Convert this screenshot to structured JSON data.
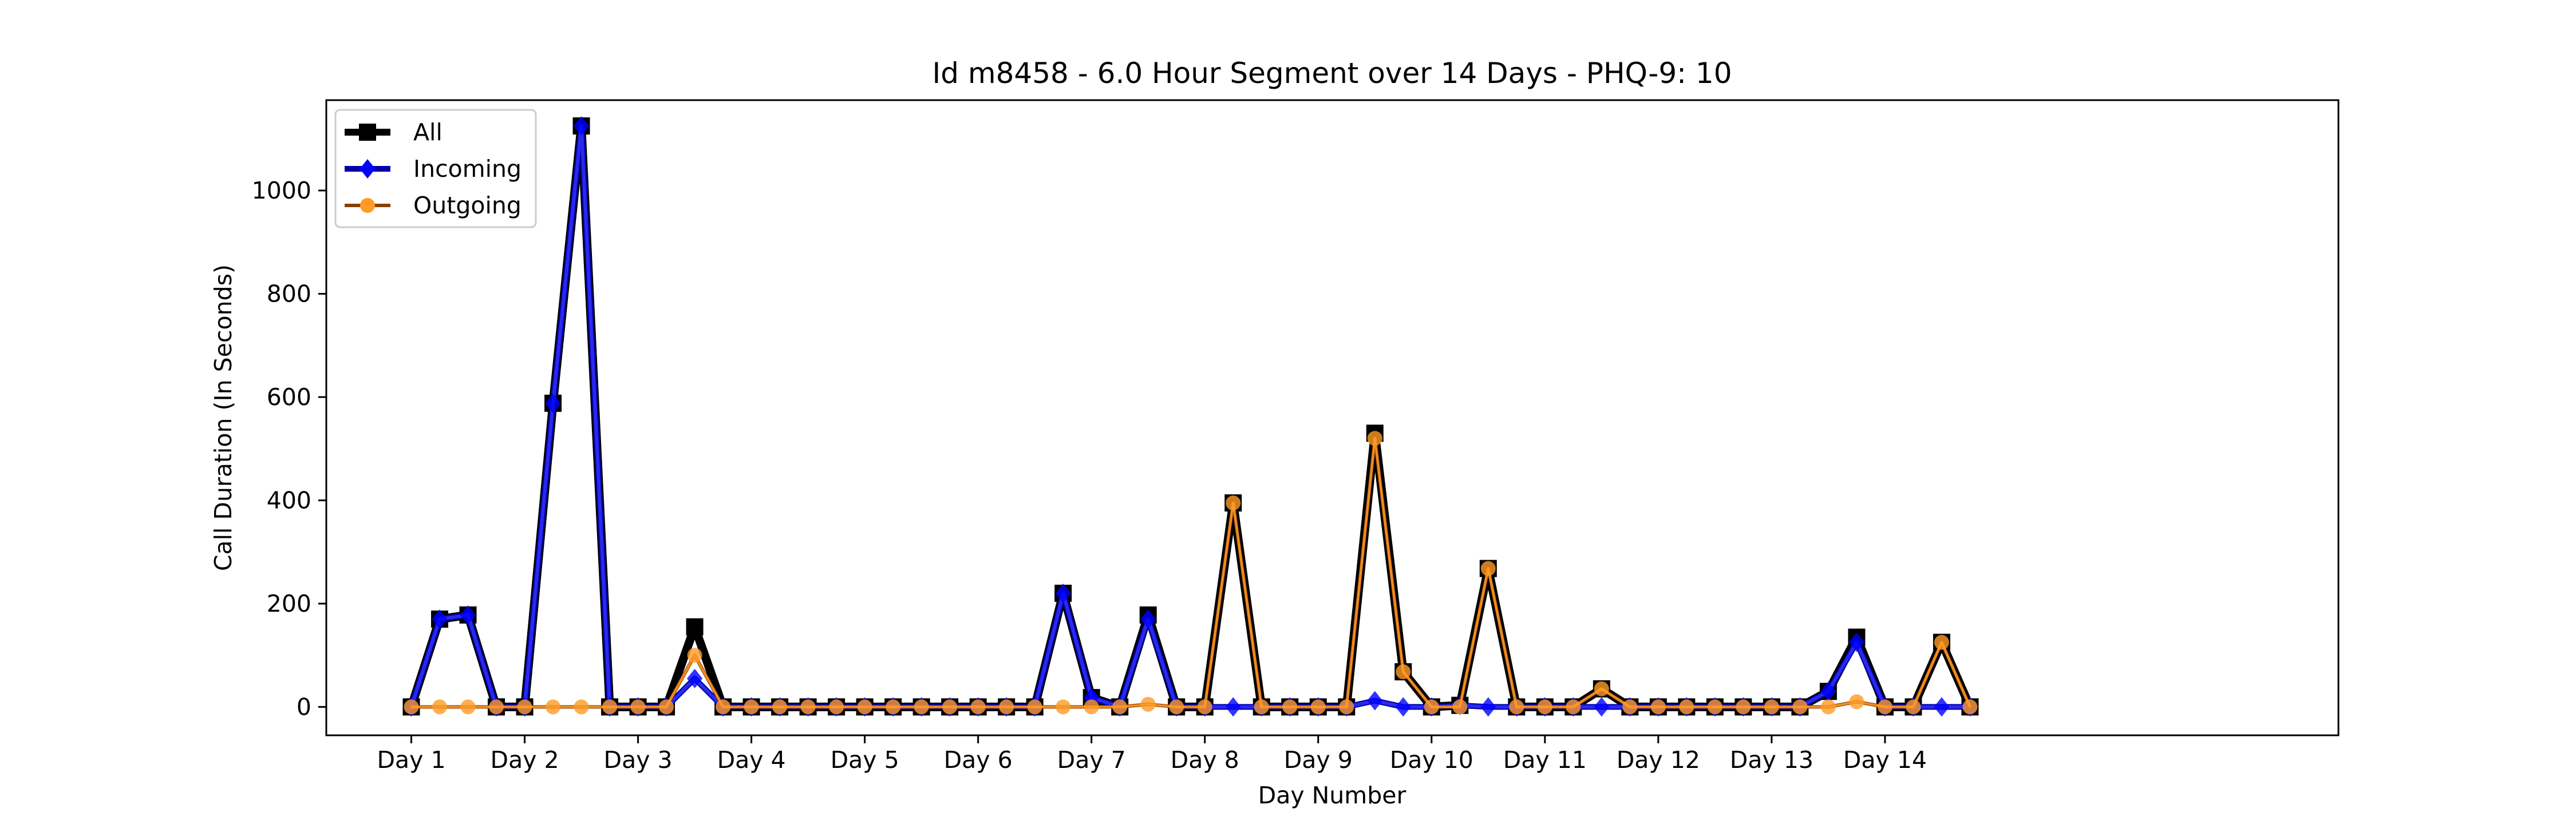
{
  "chart_data": {
    "type": "line",
    "title": "Id m8458 - 6.0 Hour Segment over 14 Days - PHQ-9: 10",
    "xlabel": "Day Number",
    "ylabel": "Call Duration (In Seconds)",
    "xlim": [
      -0.3,
      6.8
    ],
    "ylim": [
      -55,
      1175
    ],
    "yticks": [
      0,
      200,
      400,
      600,
      800,
      1000
    ],
    "xtick_labels": [
      "Day 1",
      "Day 2",
      "Day 3",
      "Day 4",
      "Day 5",
      "Day 6",
      "Day 7",
      "Day 8",
      "Day 9",
      "Day 10",
      "Day 11",
      "Day 12",
      "Day 13",
      "Day 14"
    ],
    "x": [
      0,
      0.1,
      0.2,
      0.3,
      0.4,
      0.5,
      0.6,
      0.7,
      0.8,
      0.9,
      1.0,
      1.1,
      1.2,
      1.3,
      1.4,
      1.5,
      1.6,
      1.7,
      1.8,
      1.9,
      2.0,
      2.1,
      2.2,
      2.3,
      2.4,
      2.5,
      2.6,
      2.7,
      2.8,
      2.9,
      3.0,
      3.1,
      3.2,
      3.3,
      3.4,
      3.5,
      3.6,
      3.7,
      3.8,
      3.9,
      4.0,
      4.1,
      4.2,
      4.3,
      4.4,
      4.5,
      4.6,
      4.7,
      4.8,
      4.9,
      5.0,
      5.1,
      5.2,
      5.3,
      5.4,
      5.5
    ],
    "legend_position": "top-left",
    "series": [
      {
        "name": "All",
        "color": "#000000",
        "marker": "square",
        "values": [
          0,
          170,
          178,
          0,
          0,
          588,
          1125,
          0,
          0,
          0,
          155,
          0,
          0,
          0,
          0,
          0,
          0,
          0,
          0,
          0,
          0,
          0,
          0,
          220,
          18,
          0,
          178,
          0,
          0,
          395,
          0,
          0,
          0,
          0,
          530,
          68,
          0,
          3,
          268,
          0,
          0,
          0,
          35,
          0,
          0,
          0,
          0,
          0,
          0,
          0,
          30,
          135,
          0,
          0,
          125,
          0
        ]
      },
      {
        "name": "Incoming",
        "color": "#0000ff",
        "marker": "diamond",
        "values": [
          0,
          170,
          178,
          0,
          0,
          588,
          1125,
          0,
          0,
          0,
          55,
          0,
          0,
          0,
          0,
          0,
          0,
          0,
          0,
          0,
          0,
          0,
          0,
          220,
          18,
          0,
          170,
          0,
          0,
          0,
          0,
          0,
          0,
          0,
          12,
          0,
          0,
          3,
          0,
          0,
          0,
          0,
          0,
          0,
          0,
          0,
          0,
          0,
          0,
          0,
          30,
          125,
          0,
          0,
          0,
          0
        ]
      },
      {
        "name": "Outgoing",
        "color": "#ff8c00",
        "marker": "circle",
        "values": [
          0,
          0,
          0,
          0,
          0,
          0,
          0,
          0,
          0,
          0,
          100,
          0,
          0,
          0,
          0,
          0,
          0,
          0,
          0,
          0,
          0,
          0,
          0,
          0,
          0,
          0,
          5,
          0,
          0,
          395,
          0,
          0,
          0,
          0,
          520,
          68,
          0,
          0,
          268,
          0,
          0,
          0,
          35,
          0,
          0,
          0,
          0,
          0,
          0,
          0,
          0,
          10,
          0,
          0,
          125,
          0
        ]
      }
    ]
  }
}
